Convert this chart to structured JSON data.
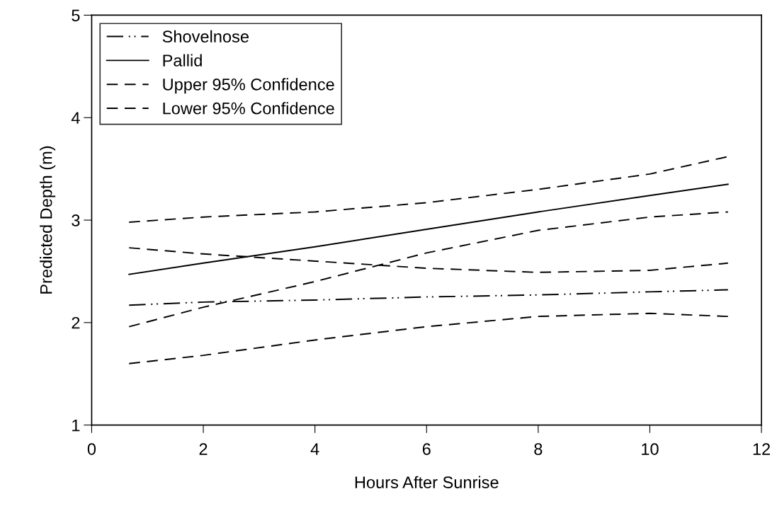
{
  "chart_data": {
    "type": "line",
    "xlabel": "Hours After Sunrise",
    "ylabel": "Predicted Depth (m)",
    "xlim": [
      0,
      12
    ],
    "xticks": [
      0,
      2,
      4,
      6,
      8,
      10,
      12
    ],
    "ylim": [
      1,
      5
    ],
    "yticks": [
      1,
      2,
      3,
      4,
      5
    ],
    "grid": false,
    "legend": "top left",
    "marker": "none",
    "x": [
      0.67,
      2,
      4,
      6,
      8,
      10,
      11.4
    ],
    "series": [
      {
        "name": "Shovelnose",
        "color": "#000000",
        "line_style": "dashdotdot",
        "values": [
          2.17,
          2.2,
          2.22,
          2.25,
          2.27,
          2.3,
          2.32
        ]
      },
      {
        "name": "Pallid",
        "color": "#000000",
        "line_style": "solid",
        "values": [
          2.47,
          2.58,
          2.74,
          2.91,
          3.08,
          3.24,
          3.35
        ]
      },
      {
        "name": "Upper 95% Confidence",
        "color": "#000000",
        "line_style": "dashed",
        "values": [
          2.98,
          3.03,
          3.08,
          3.17,
          3.3,
          3.45,
          3.62
        ]
      },
      {
        "name": "Lower 95% Confidence",
        "color": "#000000",
        "line_style": "dashed",
        "values": [
          1.96,
          2.15,
          2.4,
          2.68,
          2.9,
          3.03,
          3.08
        ]
      },
      {
        "color": "#000000",
        "line_style": "dashed",
        "values": [
          2.73,
          2.67,
          2.6,
          2.53,
          2.49,
          2.51,
          2.58
        ]
      },
      {
        "color": "#000000",
        "line_style": "dashed",
        "values": [
          1.6,
          1.68,
          1.83,
          1.96,
          2.06,
          2.09,
          2.06
        ]
      }
    ]
  }
}
